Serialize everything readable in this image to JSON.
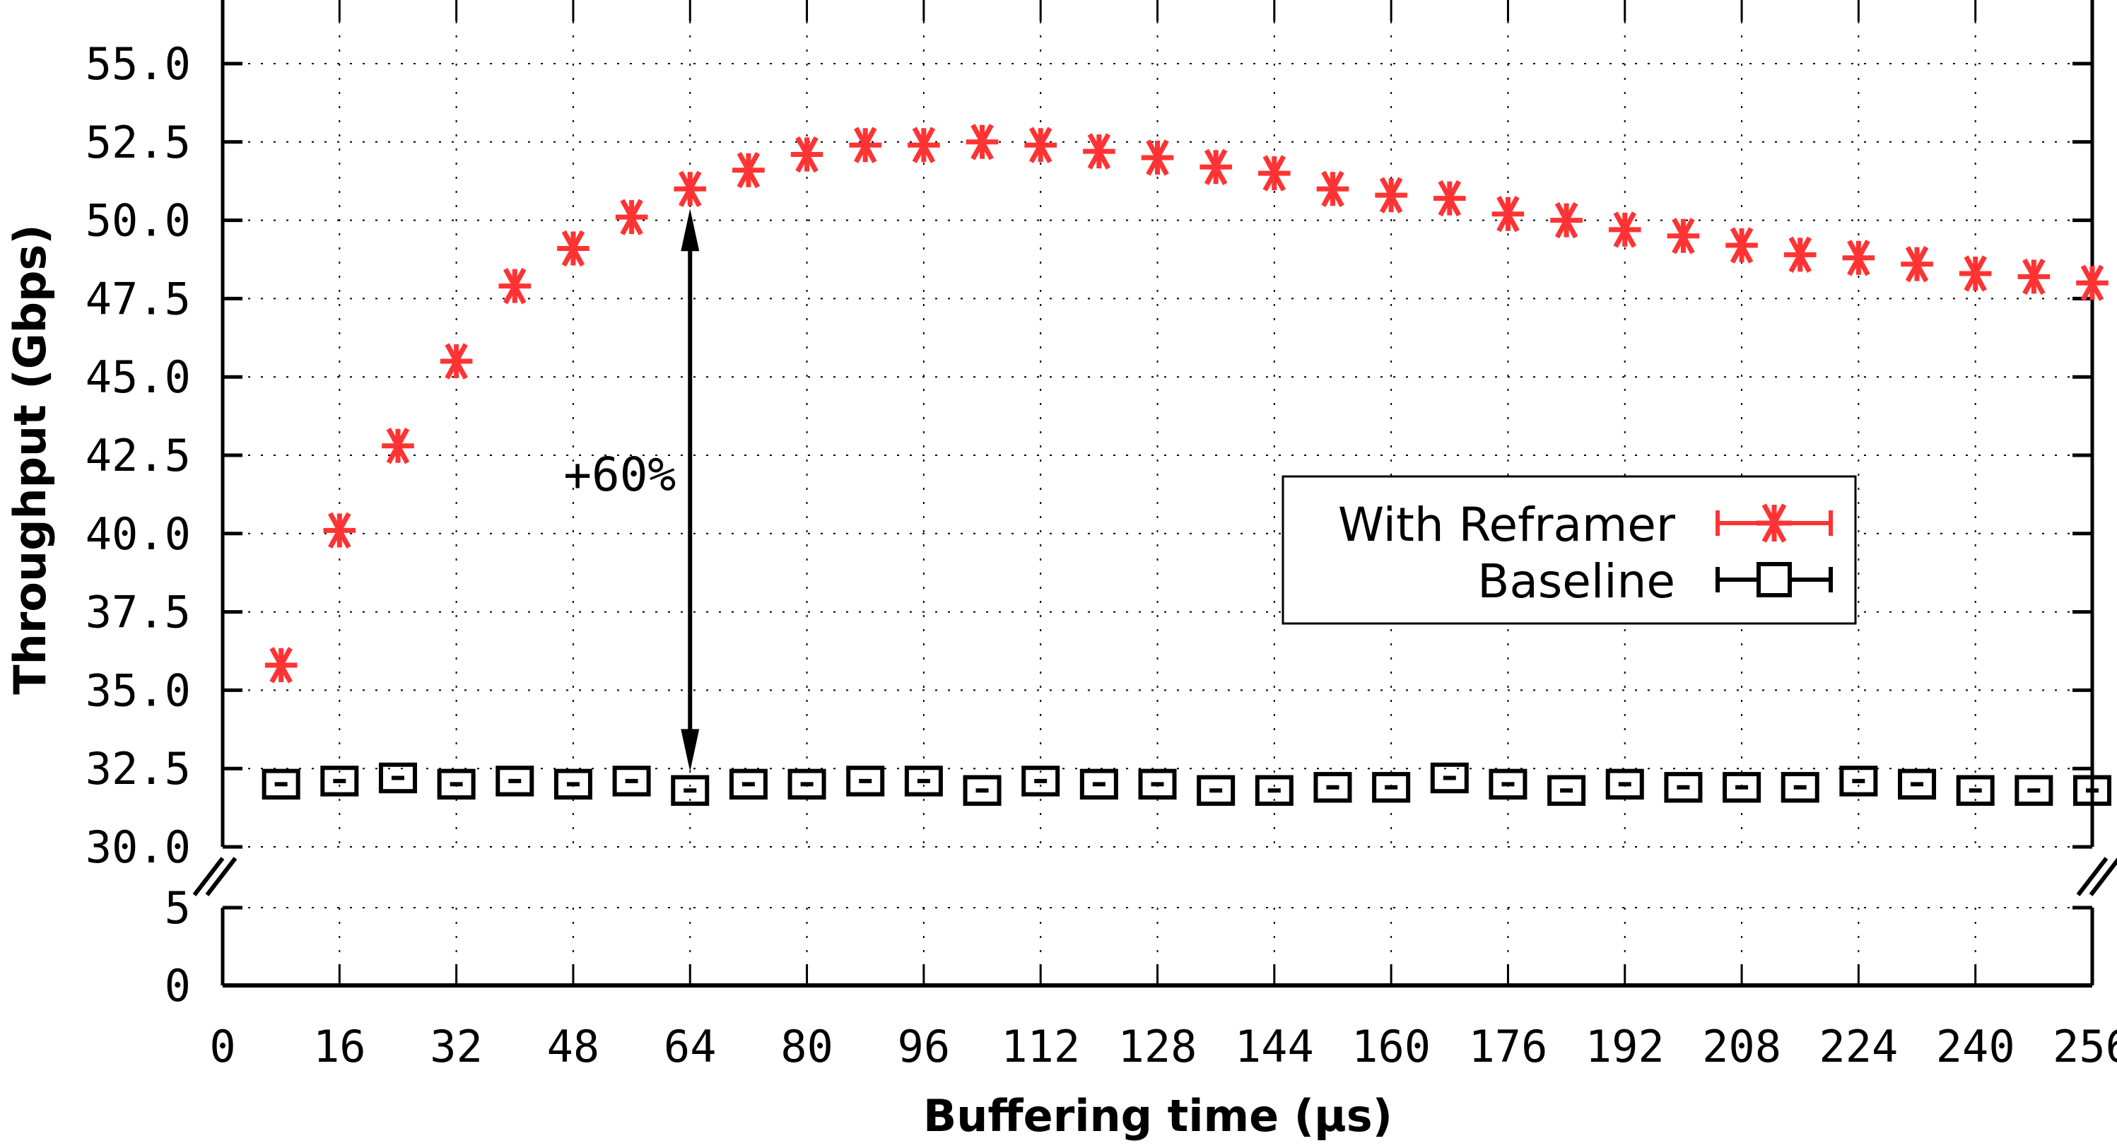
{
  "chart_data": {
    "type": "scatter",
    "title": "",
    "xlabel": "Buffering time (µs)",
    "ylabel": "Throughput (Gbps)",
    "xlim": [
      0,
      256
    ],
    "ylim_upper": [
      30.0,
      55.0
    ],
    "ylim_lower": [
      0,
      5
    ],
    "broken_y_axis": true,
    "grid": true,
    "x_ticks": [
      "0",
      "16",
      "32",
      "48",
      "64",
      "80",
      "96",
      "112",
      "128",
      "144",
      "160",
      "176",
      "192",
      "208",
      "224",
      "240",
      "256"
    ],
    "y_ticks_upper": [
      "30.0",
      "32.5",
      "35.0",
      "37.5",
      "40.0",
      "42.5",
      "45.0",
      "47.5",
      "50.0",
      "52.5",
      "55.0"
    ],
    "y_ticks_lower": [
      "0",
      "5"
    ],
    "legend_position": "right-center",
    "x": [
      8,
      16,
      24,
      32,
      40,
      48,
      56,
      64,
      72,
      80,
      88,
      96,
      104,
      112,
      120,
      128,
      136,
      144,
      152,
      160,
      168,
      176,
      184,
      192,
      200,
      208,
      216,
      224,
      232,
      240,
      248,
      256
    ],
    "series": [
      {
        "name": "With Reframer",
        "color": "#ff3333",
        "marker": "asterisk",
        "values": [
          35.8,
          40.1,
          42.8,
          45.5,
          47.9,
          49.1,
          50.1,
          51.0,
          51.6,
          52.1,
          52.4,
          52.4,
          52.5,
          52.4,
          52.2,
          52.0,
          51.7,
          51.5,
          51.0,
          50.8,
          50.7,
          50.2,
          50.0,
          49.7,
          49.5,
          49.2,
          48.9,
          48.8,
          48.6,
          48.3,
          48.2,
          48.0
        ]
      },
      {
        "name": "Baseline",
        "color": "#000000",
        "marker": "square",
        "values": [
          32.0,
          32.1,
          32.2,
          32.0,
          32.1,
          32.0,
          32.1,
          31.8,
          32.0,
          32.0,
          32.1,
          32.1,
          31.8,
          32.1,
          32.0,
          32.0,
          31.8,
          31.8,
          31.9,
          31.9,
          32.2,
          32.0,
          31.8,
          32.0,
          31.9,
          31.9,
          31.9,
          32.1,
          32.0,
          31.8,
          31.8,
          31.8
        ]
      }
    ],
    "annotations": [
      {
        "text": "+60%",
        "type": "double-arrow",
        "x": 64,
        "y_from": 32.0,
        "y_to": 51.0
      }
    ]
  }
}
